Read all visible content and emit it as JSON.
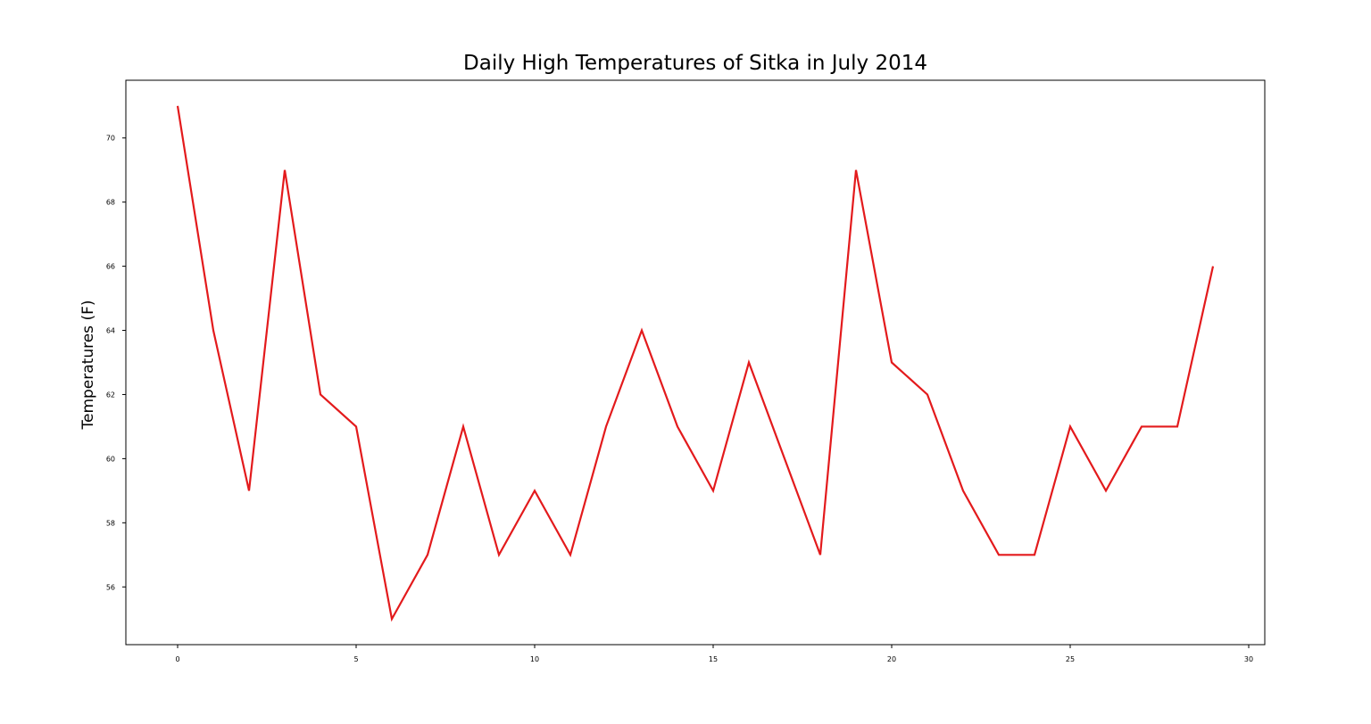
{
  "chart_data": {
    "type": "line",
    "title": "Daily High Temperatures of Sitka in July 2014",
    "xlabel": "",
    "ylabel": "Temperatures (F)",
    "xlim": [
      -1.45,
      30.45
    ],
    "ylim": [
      54.2,
      71.8
    ],
    "xticks": [
      0,
      5,
      10,
      15,
      20,
      25,
      30
    ],
    "yticks": [
      56,
      58,
      60,
      62,
      64,
      66,
      68,
      70
    ],
    "grid": false,
    "legend": "none",
    "series": [
      {
        "name": "Daily High",
        "color": "#e31a1c",
        "x": [
          0,
          1,
          2,
          3,
          4,
          5,
          6,
          7,
          8,
          9,
          10,
          11,
          12,
          13,
          14,
          15,
          16,
          17,
          18,
          19,
          20,
          21,
          22,
          23,
          24,
          25,
          26,
          27,
          28,
          29
        ],
        "y": [
          71,
          64,
          59,
          69,
          62,
          61,
          55,
          57,
          61,
          57,
          59,
          57,
          61,
          64,
          61,
          59,
          63,
          60,
          57,
          69,
          63,
          62,
          59,
          57,
          57,
          61,
          59,
          61,
          61,
          66
        ]
      }
    ]
  }
}
